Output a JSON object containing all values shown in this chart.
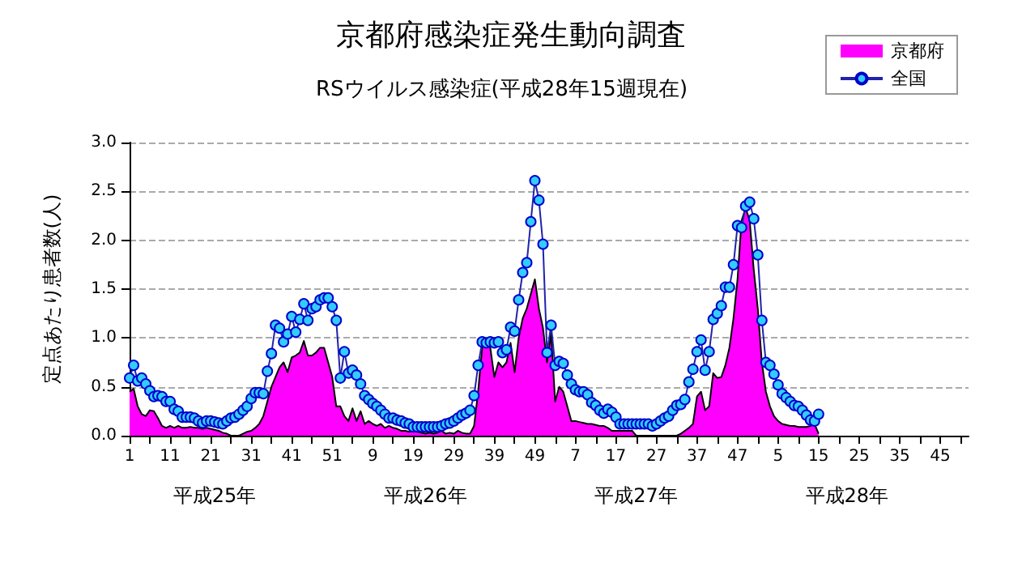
{
  "chart_data": {
    "type": "area",
    "title": "京都府感染症発生動向調査",
    "subtitle": "RSウイルス感染症(平成28年15週現在)",
    "ylabel": "定点あたり患者数(人)",
    "categories": [
      "1",
      null,
      null,
      null,
      null,
      null,
      null,
      null,
      null,
      null,
      "11",
      null,
      null,
      null,
      null,
      null,
      null,
      null,
      null,
      null,
      "21",
      null,
      null,
      null,
      null,
      null,
      null,
      null,
      null,
      null,
      "31",
      null,
      null,
      null,
      null,
      null,
      null,
      null,
      null,
      null,
      "41",
      null,
      null,
      null,
      null,
      null,
      null,
      null,
      null,
      null,
      "51",
      null,
      null,
      null,
      null,
      null,
      null,
      null,
      null,
      null,
      "9",
      null,
      null,
      null,
      null,
      null,
      null,
      null,
      null,
      null,
      "19",
      null,
      null,
      null,
      null,
      null,
      null,
      null,
      null,
      null,
      "29",
      null,
      null,
      null,
      null,
      null,
      null,
      null,
      null,
      null,
      "39",
      null,
      null,
      null,
      null,
      null,
      null,
      null,
      null,
      null,
      "49",
      null,
      null,
      null,
      null,
      null,
      null,
      null,
      null,
      null,
      "7",
      null,
      null,
      null,
      null,
      null,
      null,
      null,
      null,
      null,
      "17",
      null,
      null,
      null,
      null,
      null,
      null,
      null,
      null,
      null,
      "27",
      null,
      null,
      null,
      null,
      null,
      null,
      null,
      null,
      null,
      "37",
      null,
      null,
      null,
      null,
      null,
      null,
      null,
      null,
      null,
      "47",
      null,
      null,
      null,
      null,
      null,
      null,
      null,
      null,
      null,
      "5",
      null,
      null,
      null,
      null,
      null,
      null,
      null,
      null,
      null,
      "15",
      null,
      null,
      null,
      null,
      null,
      null,
      null,
      null,
      null,
      "25",
      null,
      null,
      null,
      null,
      null,
      null,
      null,
      null,
      null,
      "35",
      null,
      null,
      null,
      null,
      null,
      null,
      null,
      null,
      null,
      "45",
      null,
      null,
      null,
      null,
      null,
      null,
      null
    ],
    "series": [
      {
        "name": "京都府",
        "color": "#ff00ff",
        "values": [
          0.45,
          0.48,
          0.3,
          0.22,
          0.2,
          0.26,
          0.25,
          0.18,
          0.1,
          0.08,
          0.1,
          0.08,
          0.1,
          0.08,
          0.08,
          0.09,
          0.08,
          0.08,
          0.07,
          0.08,
          0.07,
          0.06,
          0.05,
          0.03,
          0.02,
          0,
          0,
          0,
          0.02,
          0.04,
          0.05,
          0.08,
          0.12,
          0.2,
          0.35,
          0.5,
          0.6,
          0.7,
          0.75,
          0.65,
          0.8,
          0.82,
          0.85,
          0.97,
          0.82,
          0.82,
          0.85,
          0.9,
          0.9,
          0.75,
          0.6,
          0.3,
          0.3,
          0.2,
          0.15,
          0.28,
          0.15,
          0.25,
          0.12,
          0.15,
          0.12,
          0.1,
          0.12,
          0.08,
          0.1,
          0.08,
          0.07,
          0.05,
          0.05,
          0.04,
          0.05,
          0.04,
          0.03,
          0.02,
          0.03,
          0.02,
          0.03,
          0.05,
          0.02,
          0.03,
          0.02,
          0.05,
          0.03,
          0.02,
          0.02,
          0.1,
          0.45,
          0.9,
          0.95,
          0.9,
          0.6,
          0.75,
          0.7,
          0.75,
          0.95,
          0.65,
          1.0,
          1.2,
          1.3,
          1.45,
          1.6,
          1.3,
          1.1,
          0.75,
          1.05,
          0.35,
          0.5,
          0.45,
          0.3,
          0.15,
          0.15,
          0.14,
          0.13,
          0.12,
          0.12,
          0.11,
          0.1,
          0.1,
          0.08,
          0.05,
          0.05,
          0.05,
          0.05,
          0.05,
          0.05,
          0,
          0,
          0,
          0,
          0,
          0,
          0,
          0,
          0,
          0,
          0,
          0.02,
          0.05,
          0.08,
          0.12,
          0.4,
          0.45,
          0.26,
          0.3,
          0.64,
          0.59,
          0.6,
          0.72,
          0.9,
          1.2,
          1.6,
          2.2,
          2.33,
          2.2,
          1.7,
          1.3,
          0.75,
          0.45,
          0.3,
          0.2,
          0.15,
          0.12,
          0.11,
          0.1,
          0.1,
          0.09,
          0.09,
          0.09,
          0.1,
          0.12,
          0.02,
          null,
          null,
          null,
          null,
          null,
          null,
          null,
          null,
          null,
          null,
          null,
          null,
          null,
          null,
          null,
          null,
          null,
          null,
          null,
          null,
          null,
          null,
          null,
          null,
          null,
          null,
          null,
          null,
          null,
          null,
          null,
          null,
          null,
          null,
          null,
          null,
          null
        ]
      },
      {
        "name": "全国",
        "type": "line",
        "color": "#33ccff",
        "marker": "circle",
        "values": [
          0.59,
          0.72,
          0.56,
          0.59,
          0.53,
          0.46,
          0.4,
          0.41,
          0.4,
          0.35,
          0.35,
          0.27,
          0.25,
          0.19,
          0.19,
          0.19,
          0.18,
          0.15,
          0.13,
          0.15,
          0.15,
          0.14,
          0.13,
          0.12,
          0.15,
          0.18,
          0.19,
          0.22,
          0.26,
          0.3,
          0.38,
          0.44,
          0.44,
          0.43,
          0.66,
          0.84,
          1.13,
          1.1,
          0.96,
          1.04,
          1.22,
          1.06,
          1.19,
          1.35,
          1.18,
          1.3,
          1.32,
          1.39,
          1.41,
          1.41,
          1.32,
          1.18,
          0.59,
          0.86,
          0.64,
          0.67,
          0.62,
          0.53,
          0.41,
          0.37,
          0.33,
          0.3,
          0.26,
          0.22,
          0.18,
          0.18,
          0.16,
          0.15,
          0.13,
          0.12,
          0.09,
          0.09,
          0.09,
          0.09,
          0.09,
          0.09,
          0.09,
          0.1,
          0.12,
          0.13,
          0.15,
          0.18,
          0.21,
          0.23,
          0.26,
          0.41,
          0.72,
          0.96,
          0.95,
          0.96,
          0.95,
          0.96,
          0.85,
          0.88,
          1.11,
          1.07,
          1.39,
          1.67,
          1.77,
          2.19,
          2.61,
          2.41,
          1.96,
          0.85,
          1.13,
          0.72,
          0.76,
          0.74,
          0.62,
          0.53,
          0.47,
          0.45,
          0.45,
          0.42,
          0.34,
          0.31,
          0.26,
          0.23,
          0.27,
          0.24,
          0.19,
          0.12,
          0.12,
          0.12,
          0.12,
          0.12,
          0.12,
          0.12,
          0.12,
          0.1,
          0.12,
          0.15,
          0.18,
          0.2,
          0.26,
          0.31,
          0.32,
          0.37,
          0.55,
          0.68,
          0.86,
          0.98,
          0.67,
          0.86,
          1.19,
          1.25,
          1.33,
          1.52,
          1.52,
          1.75,
          2.15,
          2.13,
          2.35,
          2.39,
          2.22,
          1.85,
          1.18,
          0.75,
          0.72,
          0.63,
          0.52,
          0.43,
          0.39,
          0.35,
          0.31,
          0.3,
          0.26,
          0.21,
          0.16,
          0.15,
          0.22,
          null,
          null,
          null,
          null,
          null,
          null,
          null,
          null,
          null,
          null,
          null,
          null,
          null,
          null,
          null,
          null,
          null,
          null,
          null,
          null,
          null,
          null,
          null,
          null,
          null,
          null,
          null,
          null,
          null,
          null,
          null,
          null,
          null,
          null,
          null,
          null,
          null
        ]
      }
    ],
    "ylim": [
      0,
      3.0
    ],
    "yticks": [
      {
        "value": 0,
        "label": "0.0"
      },
      {
        "value": 0.5,
        "label": "0.5"
      },
      {
        "value": 1,
        "label": "1.0"
      },
      {
        "value": 1.5,
        "label": "1.5"
      },
      {
        "value": 2,
        "label": "2.0"
      },
      {
        "value": 2.5,
        "label": "2.5"
      },
      {
        "value": 3,
        "label": "3.0"
      }
    ],
    "grid": "y",
    "legend": "top right",
    "annotations": [
      "平成25年",
      "平成26年",
      "平成27年",
      "平成28年"
    ]
  }
}
